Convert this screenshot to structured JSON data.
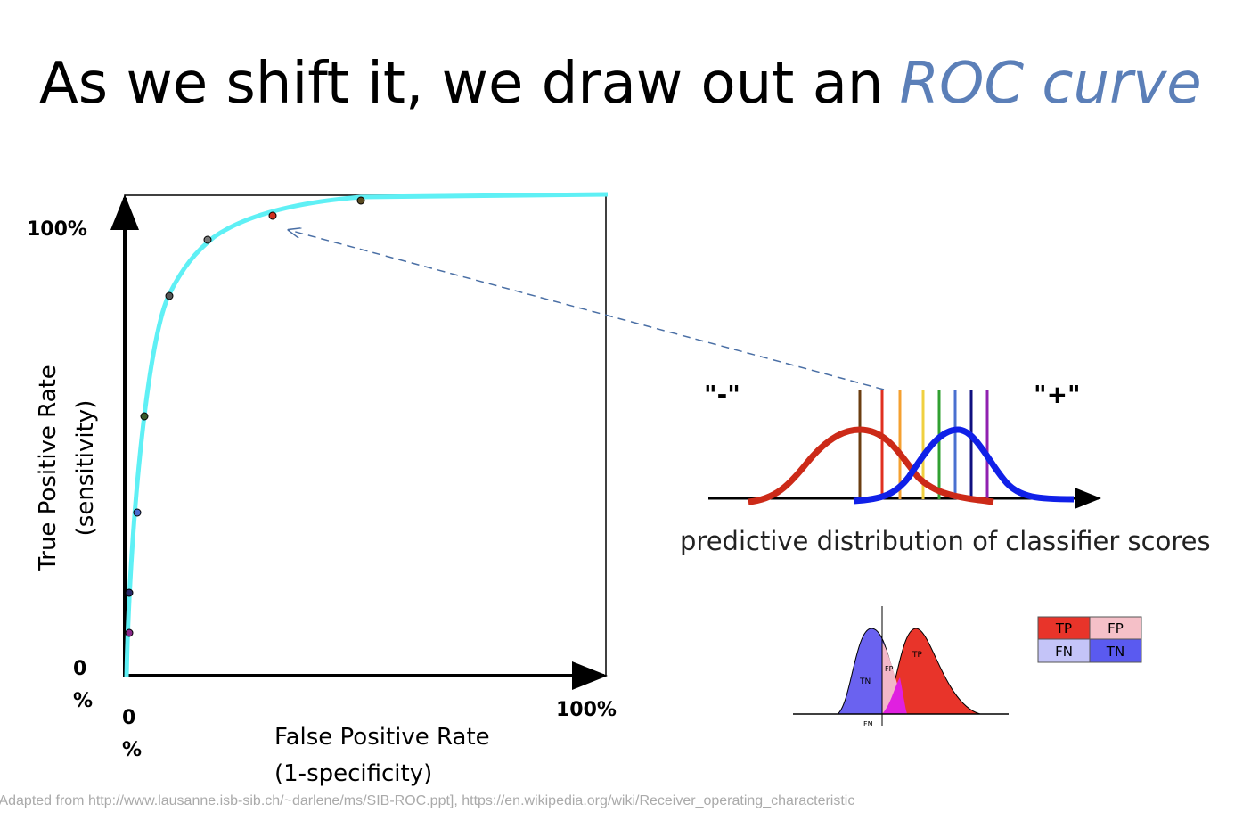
{
  "title": {
    "text": "As we shift it, we draw out an",
    "highlight": "ROC curve"
  },
  "roc_plot": {
    "y_axis_label": [
      "True Positive Rate",
      "(sensitivity)"
    ],
    "x_axis_label": [
      "False Positive Rate",
      "(1-specificity)"
    ],
    "y_top": "100%",
    "y_bottom": [
      "0",
      "%"
    ],
    "x_left": [
      "0",
      "%"
    ],
    "x_right": "100%"
  },
  "distribution": {
    "negative_label": "\"-\"",
    "positive_label": "\"+\"",
    "caption": "predictive distribution of classifier scores"
  },
  "overlap_diagram": {
    "tn": "TN",
    "fp": "FP",
    "tp": "TP",
    "fn": "FN"
  },
  "confusion_table": {
    "rows": [
      [
        "TP",
        "FP"
      ],
      [
        "FN",
        "TN"
      ]
    ]
  },
  "citation": "[Adapted from http://www.lausanne.isb-sib.ch/~darlene/ms/SIB-ROC.ppt], https://en.wikipedia.org/wiki/Receiver_operating_characteristic"
}
